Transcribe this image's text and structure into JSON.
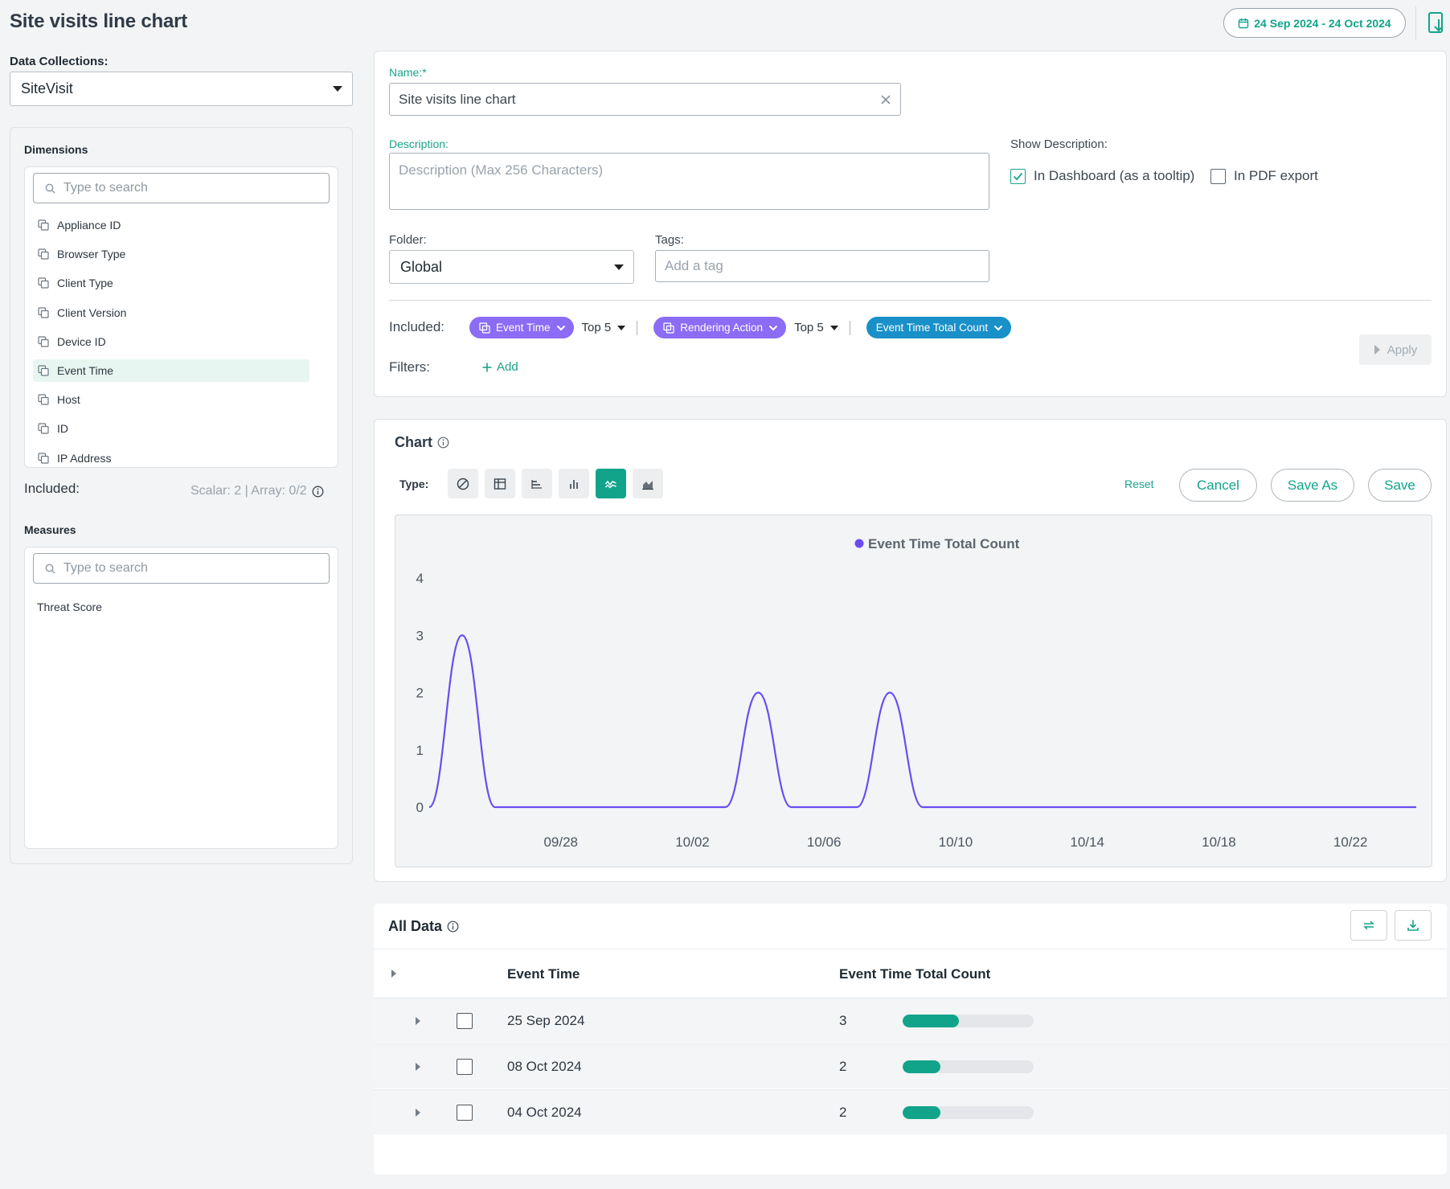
{
  "header": {
    "title": "Site visits line chart",
    "date_range": "24 Sep 2024 - 24 Oct 2024"
  },
  "left": {
    "data_collections_label": "Data Collections:",
    "data_collection_value": "SiteVisit",
    "dimensions_label": "Dimensions",
    "dimensions_search_placeholder": "Type to search",
    "dimensions": [
      "Appliance ID",
      "Browser Type",
      "Client Type",
      "Client Version",
      "Device ID",
      "Event Time",
      "Host",
      "ID",
      "IP Address"
    ],
    "selected_dimension": "Event Time",
    "included_label": "Included:",
    "included_counts": "Scalar: 2 | Array: 0/2",
    "measures_label": "Measures",
    "measures_search_placeholder": "Type to search",
    "measures": [
      "Threat Score"
    ]
  },
  "form": {
    "name_label": "Name:*",
    "name_value": "Site visits line chart",
    "description_label": "Description:",
    "description_placeholder": "Description (Max 256 Characters)",
    "show_description_label": "Show Description:",
    "in_dashboard_label": "In Dashboard (as a tooltip)",
    "in_dashboard_checked": true,
    "in_pdf_label": "In PDF export",
    "in_pdf_checked": false,
    "folder_label": "Folder:",
    "folder_value": "Global",
    "tags_label": "Tags:",
    "tags_placeholder": "Add a tag",
    "included_label": "Included:",
    "chip_event_time": "Event Time",
    "topn_1": "Top 5",
    "chip_rendering_action": "Rendering Action",
    "topn_2": "Top 5",
    "chip_total_count": "Event Time Total Count",
    "filters_label": "Filters:",
    "add_filter_label": "Add",
    "apply_label": "Apply"
  },
  "chart_panel": {
    "title": "Chart",
    "type_label": "Type:",
    "reset_label": "Reset",
    "cancel_label": "Cancel",
    "save_as_label": "Save As",
    "save_label": "Save",
    "active_type": "line",
    "types": [
      "none-icon",
      "table-icon",
      "horizontal-bar-icon",
      "vertical-bar-icon",
      "line-icon",
      "area-icon"
    ]
  },
  "chart_data": {
    "type": "line",
    "series": [
      {
        "name": "Event Time Total Count",
        "color": "#6a4cf0",
        "x": [
          "2024-09-24",
          "2024-09-25",
          "2024-09-26",
          "2024-09-27",
          "2024-10-02",
          "2024-10-03",
          "2024-10-04",
          "2024-10-05",
          "2024-10-06",
          "2024-10-07",
          "2024-10-08",
          "2024-10-09",
          "2024-10-24"
        ],
        "values": [
          0,
          3,
          0,
          0,
          0,
          0,
          2,
          0,
          0,
          0,
          2,
          0,
          0
        ]
      }
    ],
    "x_tick_labels": [
      "09/28",
      "10/02",
      "10/06",
      "10/10",
      "10/14",
      "10/18",
      "10/22"
    ],
    "y_ticks": [
      0,
      1,
      2,
      3,
      4
    ],
    "ylim": [
      0,
      4
    ],
    "grid": false,
    "legend": "top-center"
  },
  "table": {
    "title": "All Data",
    "columns": [
      "Event Time",
      "Event Time Total Count"
    ],
    "rows": [
      {
        "event_time": "25 Sep 2024",
        "count": "3",
        "fraction": 0.43
      },
      {
        "event_time": "08 Oct 2024",
        "count": "2",
        "fraction": 0.29
      },
      {
        "event_time": "04 Oct 2024",
        "count": "2",
        "fraction": 0.29
      }
    ]
  }
}
